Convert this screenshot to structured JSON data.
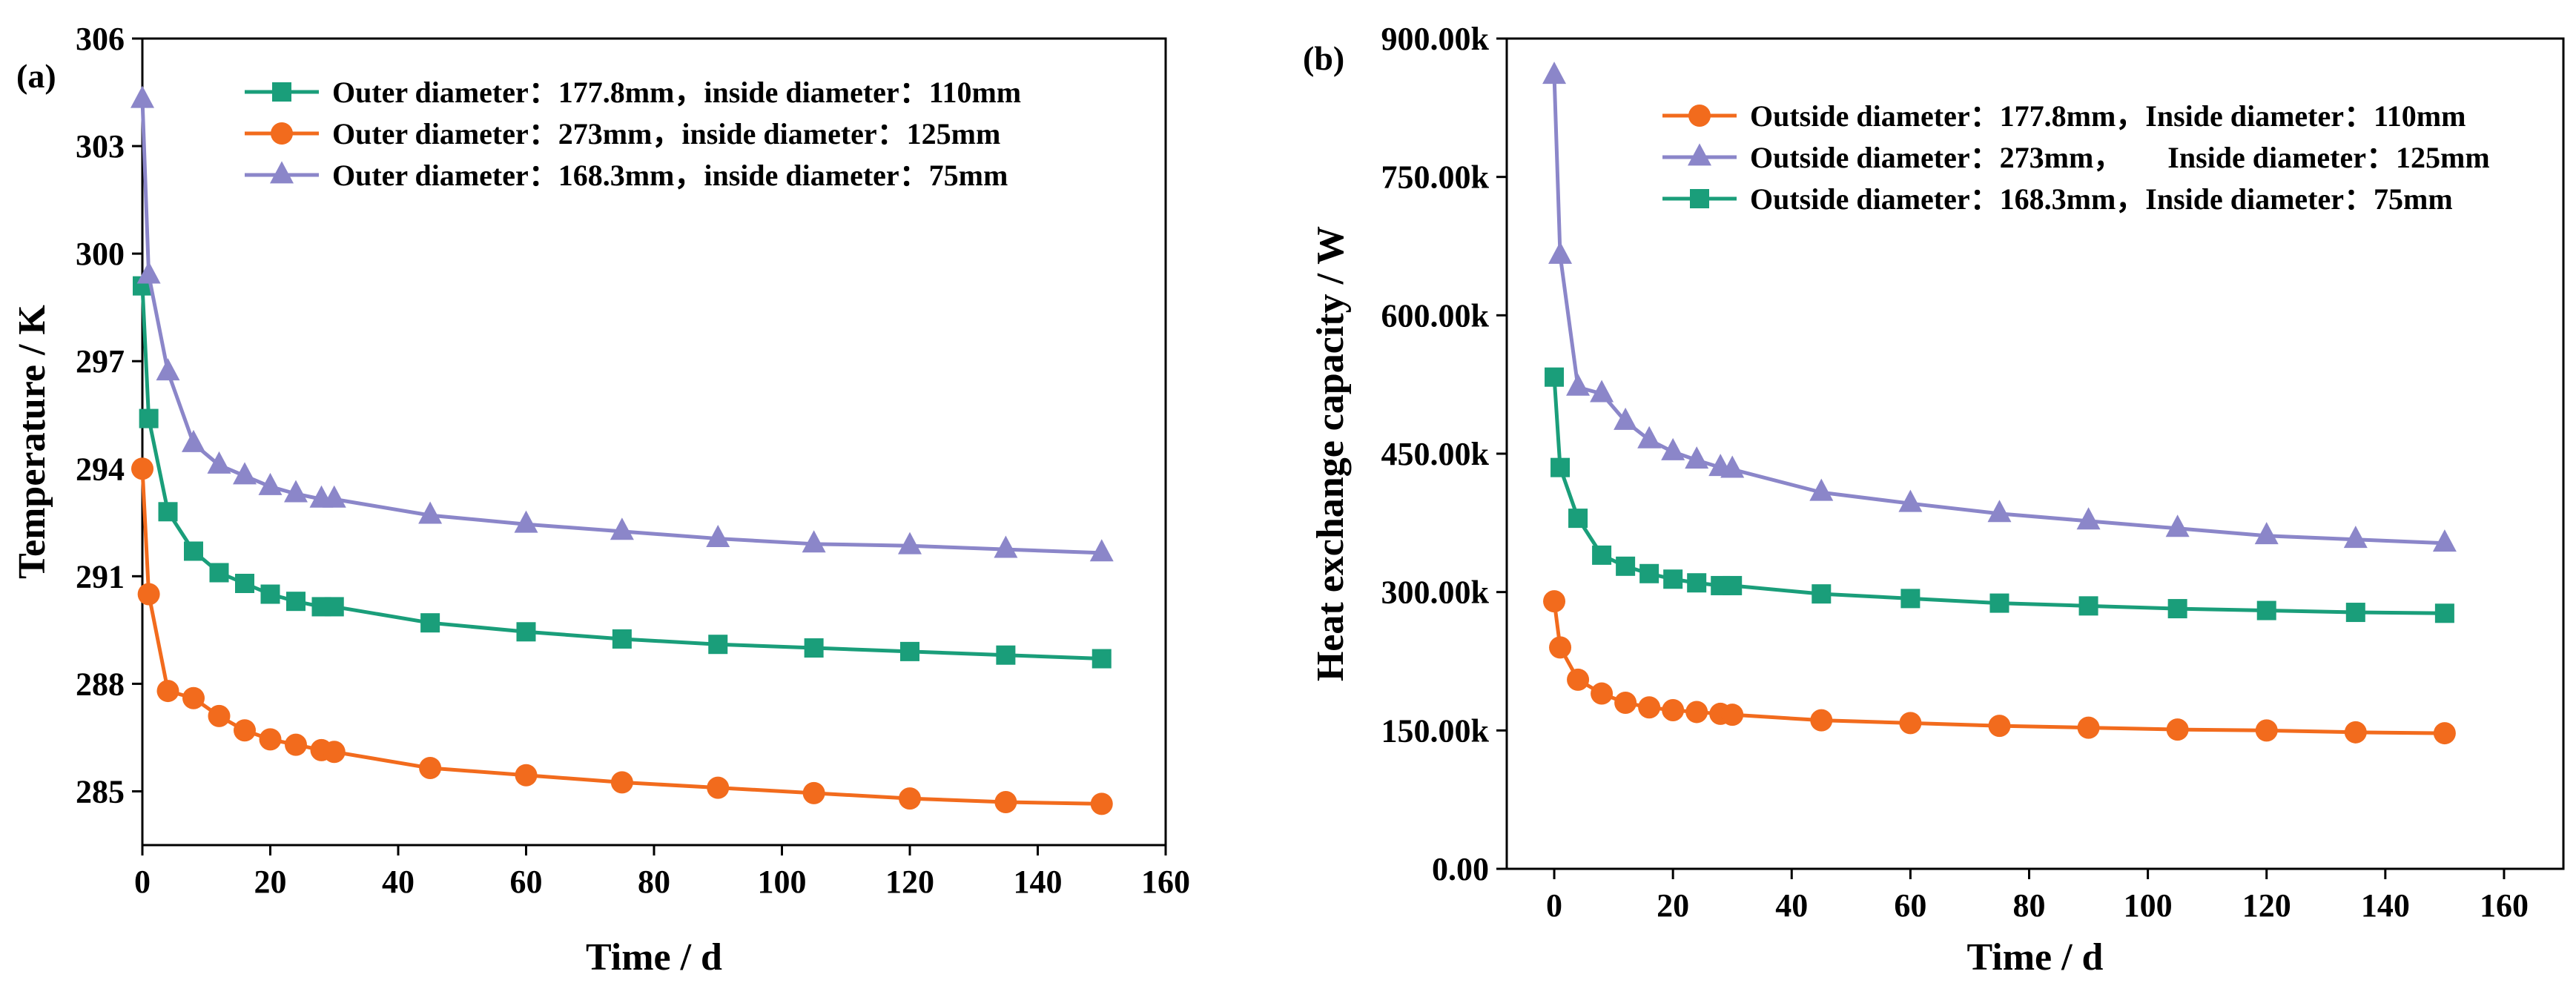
{
  "chart_data": [
    {
      "type": "line",
      "panel_label": "(a)",
      "xlabel": "Time / d",
      "ylabel": "Temperature / K",
      "xlim": [
        0,
        160
      ],
      "ylim": [
        283.5,
        306
      ],
      "x_ticks": [
        0,
        20,
        40,
        60,
        80,
        100,
        120,
        140,
        160
      ],
      "y_ticks": [
        285,
        288,
        291,
        294,
        297,
        300,
        303,
        306
      ],
      "x_tick_labels": [
        "0",
        "20",
        "40",
        "60",
        "80",
        "100",
        "120",
        "140",
        "160"
      ],
      "y_tick_labels": [
        "285",
        "288",
        "291",
        "294",
        "297",
        "300",
        "303",
        "306"
      ],
      "legend_position": "top-right",
      "series": [
        {
          "name": "Outer diameter：177.8mm，inside diameter：110mm",
          "color": "#1a9e7a",
          "marker": "square",
          "x": [
            0,
            1,
            4,
            8,
            12,
            16,
            20,
            24,
            28,
            30,
            45,
            60,
            75,
            90,
            105,
            120,
            135,
            150
          ],
          "y": [
            299.1,
            295.4,
            292.8,
            291.7,
            291.1,
            290.8,
            290.5,
            290.3,
            290.15,
            290.15,
            289.7,
            289.45,
            289.25,
            289.1,
            289.0,
            288.9,
            288.8,
            288.7
          ]
        },
        {
          "name": "Outer diameter：273mm，inside diameter：125mm",
          "color": "#f26b1d",
          "marker": "circle",
          "x": [
            0,
            1,
            4,
            8,
            12,
            16,
            20,
            24,
            28,
            30,
            45,
            60,
            75,
            90,
            105,
            120,
            135,
            150
          ],
          "y": [
            294.0,
            290.5,
            287.8,
            287.6,
            287.1,
            286.7,
            286.45,
            286.3,
            286.15,
            286.1,
            285.65,
            285.45,
            285.25,
            285.1,
            284.95,
            284.8,
            284.7,
            284.65
          ]
        },
        {
          "name": "Outer diameter：168.3mm，inside diameter：75mm",
          "color": "#8b86c9",
          "marker": "triangle",
          "x": [
            0,
            1,
            4,
            8,
            12,
            16,
            20,
            24,
            28,
            30,
            45,
            60,
            75,
            90,
            105,
            120,
            135,
            150
          ],
          "y": [
            304.3,
            299.4,
            296.7,
            294.7,
            294.1,
            293.8,
            293.5,
            293.3,
            293.15,
            293.15,
            292.7,
            292.45,
            292.25,
            292.05,
            291.9,
            291.85,
            291.75,
            291.65
          ]
        }
      ]
    },
    {
      "type": "line",
      "panel_label": "(b)",
      "xlabel": "Time / d",
      "ylabel": "Heat exchange capacity / W",
      "xlim": [
        -8,
        170
      ],
      "ylim": [
        0,
        900000
      ],
      "x_ticks": [
        0,
        20,
        40,
        60,
        80,
        100,
        120,
        140,
        160
      ],
      "y_ticks": [
        0,
        150000,
        300000,
        450000,
        600000,
        750000,
        900000
      ],
      "x_tick_labels": [
        "0",
        "20",
        "40",
        "60",
        "80",
        "100",
        "120",
        "140",
        "160"
      ],
      "y_tick_labels": [
        "0.00",
        "150.00k",
        "300.00k",
        "450.00k",
        "600.00k",
        "750.00k",
        "900.00k"
      ],
      "legend_position": "top-right",
      "series": [
        {
          "name": "Outside diameter：177.8mm，Inside diameter：110mm",
          "color": "#f26b1d",
          "marker": "circle",
          "x": [
            0,
            1,
            4,
            8,
            12,
            16,
            20,
            24,
            28,
            30,
            45,
            60,
            75,
            90,
            105,
            120,
            135,
            150
          ],
          "y": [
            290000,
            240000,
            205000,
            190000,
            180000,
            175000,
            172000,
            170000,
            168000,
            167000,
            161000,
            158000,
            155000,
            153000,
            151000,
            150000,
            148000,
            147000
          ]
        },
        {
          "name": "Outside diameter：273mm，      Inside diameter：125mm",
          "color": "#8b86c9",
          "marker": "triangle",
          "x": [
            0,
            1,
            4,
            8,
            12,
            16,
            20,
            24,
            28,
            30,
            45,
            60,
            75,
            90,
            105,
            120,
            135,
            150
          ],
          "y": [
            860000,
            665000,
            522000,
            515000,
            485000,
            465000,
            452000,
            443000,
            435000,
            433000,
            408000,
            396000,
            385000,
            377000,
            369000,
            361000,
            357000,
            353000
          ]
        },
        {
          "name": "Outside diameter：168.3mm，Inside diameter：75mm",
          "color": "#1a9e7a",
          "marker": "square",
          "x": [
            0,
            1,
            4,
            8,
            12,
            16,
            20,
            24,
            28,
            30,
            45,
            60,
            75,
            90,
            105,
            120,
            135,
            150
          ],
          "y": [
            533000,
            435000,
            380000,
            340000,
            328000,
            320000,
            314000,
            310000,
            307000,
            307000,
            298000,
            293000,
            288000,
            285000,
            282000,
            280000,
            278000,
            277000
          ]
        }
      ]
    }
  ]
}
